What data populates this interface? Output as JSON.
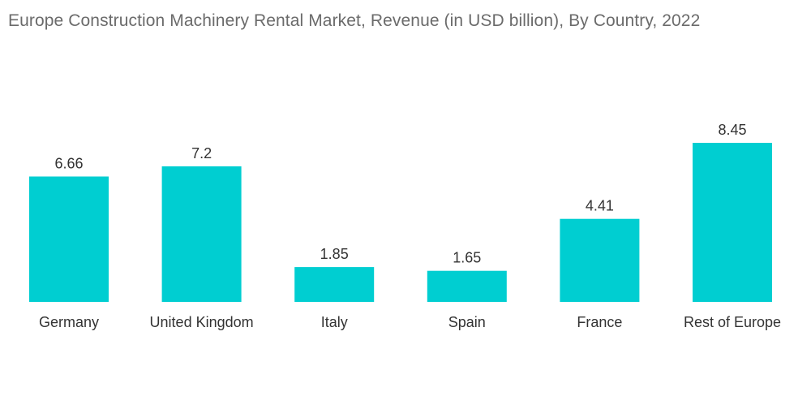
{
  "chart_data": {
    "type": "bar",
    "title": "Europe Construction Machinery Rental Market, Revenue (in USD billion), By Country,  2022",
    "categories": [
      "Germany",
      "United Kingdom",
      "Italy",
      "Spain",
      "France",
      "Rest of Europe"
    ],
    "values": [
      6.66,
      7.2,
      1.85,
      1.65,
      4.41,
      8.45
    ],
    "value_labels": [
      "6.66",
      "7.2",
      "1.85",
      "1.65",
      "4.41",
      "8.45"
    ],
    "xlabel": "",
    "ylabel": "",
    "ylim": [
      0,
      8.45
    ],
    "grid": false,
    "legend": "none",
    "bar_color": "#00CED1"
  }
}
